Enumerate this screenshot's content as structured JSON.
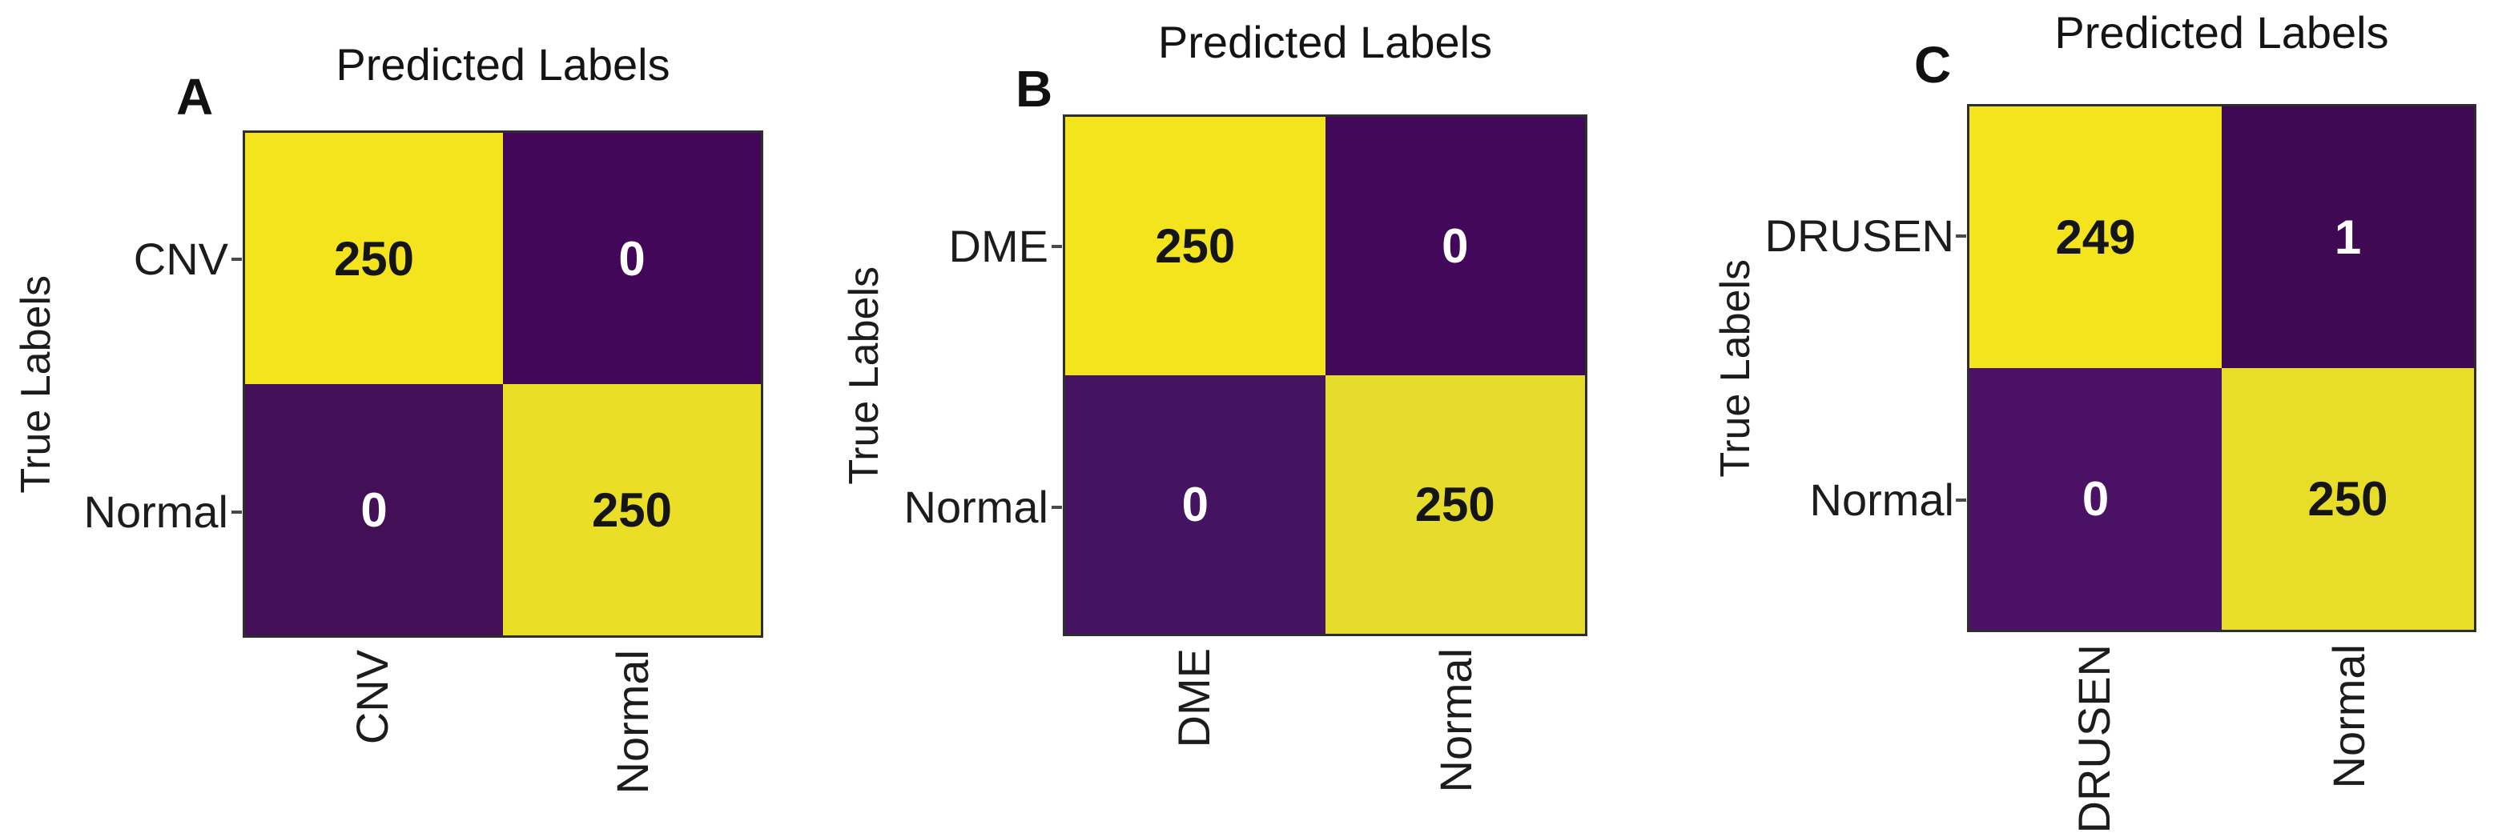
{
  "figure": {
    "background": "#ffffff",
    "colors": {
      "diagonal_cell_yellow": "#F4E41E",
      "diagonal_cell_yellow_muted": "#EADF26",
      "off_diagonal_purple": "#43075A",
      "off_diagonal_purple_light": "#4B1165",
      "text_on_yellow": "#151515",
      "text_on_purple": "#ffffff",
      "matrix_border": "#2e2e2e",
      "label_text": "#1c1c1c"
    }
  },
  "panels": [
    {
      "letter": "A",
      "title": "Predicted Labels",
      "ylabel": "True Labels",
      "row_labels": [
        "CNV",
        "Normal"
      ],
      "col_labels": [
        "CNV",
        "Normal"
      ],
      "cells": [
        {
          "value": "250",
          "bg": "#F4E41E",
          "fg": "#151515"
        },
        {
          "value": "0",
          "bg": "#43075A",
          "fg": "#ffffff"
        },
        {
          "value": "0",
          "bg": "#431058",
          "fg": "#ffffff"
        },
        {
          "value": "250",
          "bg": "#EADF26",
          "fg": "#151515"
        }
      ]
    },
    {
      "letter": "B",
      "title": "Predicted Labels",
      "ylabel": "True Labels",
      "row_labels": [
        "DME",
        "Normal"
      ],
      "col_labels": [
        "DME",
        "Normal"
      ],
      "cells": [
        {
          "value": "250",
          "bg": "#F4E41E",
          "fg": "#151515"
        },
        {
          "value": "0",
          "bg": "#42085A",
          "fg": "#ffffff"
        },
        {
          "value": "0",
          "bg": "#441361",
          "fg": "#ffffff"
        },
        {
          "value": "250",
          "bg": "#E6DC2B",
          "fg": "#151515"
        }
      ]
    },
    {
      "letter": "C",
      "title": "Predicted Labels",
      "ylabel": "True Labels",
      "row_labels": [
        "DRUSEN",
        "Normal"
      ],
      "col_labels": [
        "DRUSEN",
        "Normal"
      ],
      "cells": [
        {
          "value": "249",
          "bg": "#F4E41E",
          "fg": "#151515"
        },
        {
          "value": "1",
          "bg": "#400953",
          "fg": "#ffffff"
        },
        {
          "value": "0",
          "bg": "#4B1165",
          "fg": "#ffffff"
        },
        {
          "value": "250",
          "bg": "#E8DD28",
          "fg": "#151515"
        }
      ]
    }
  ],
  "chart_data": [
    {
      "type": "heatmap",
      "panel": "A",
      "title": "Predicted Labels",
      "xlabel": "Predicted Labels",
      "ylabel": "True Labels",
      "x_categories": [
        "CNV",
        "Normal"
      ],
      "y_categories": [
        "CNV",
        "Normal"
      ],
      "matrix": [
        [
          250,
          0
        ],
        [
          0,
          250
        ]
      ],
      "colormap": "viridis",
      "legend": "none",
      "grid": false
    },
    {
      "type": "heatmap",
      "panel": "B",
      "title": "Predicted Labels",
      "xlabel": "Predicted Labels",
      "ylabel": "True Labels",
      "x_categories": [
        "DME",
        "Normal"
      ],
      "y_categories": [
        "DME",
        "Normal"
      ],
      "matrix": [
        [
          250,
          0
        ],
        [
          0,
          250
        ]
      ],
      "colormap": "viridis",
      "legend": "none",
      "grid": false
    },
    {
      "type": "heatmap",
      "panel": "C",
      "title": "Predicted Labels",
      "xlabel": "Predicted Labels",
      "ylabel": "True Labels",
      "x_categories": [
        "DRUSEN",
        "Normal"
      ],
      "y_categories": [
        "DRUSEN",
        "Normal"
      ],
      "matrix": [
        [
          249,
          1
        ],
        [
          0,
          250
        ]
      ],
      "colormap": "viridis",
      "legend": "none",
      "grid": false
    }
  ]
}
